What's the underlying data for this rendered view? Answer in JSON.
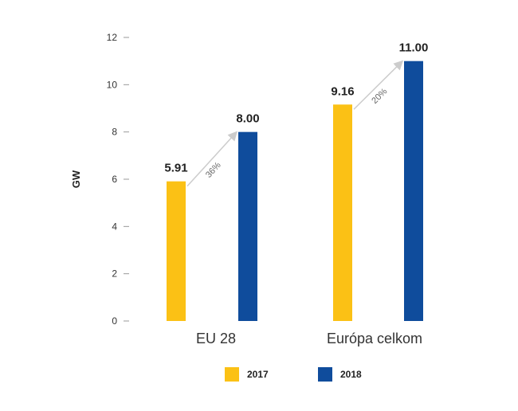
{
  "chart_data": {
    "type": "bar",
    "ylabel": "GW",
    "ylim": [
      0,
      12
    ],
    "yticks": [
      0,
      2,
      4,
      6,
      8,
      10,
      12
    ],
    "categories": [
      "EU 28",
      "Európa celkom"
    ],
    "series": [
      {
        "name": "2017",
        "color": "#FBC115",
        "values": [
          5.91,
          9.16
        ],
        "labels": [
          "5.91",
          "9.16"
        ]
      },
      {
        "name": "2018",
        "color": "#0F4C9C",
        "values": [
          8.0,
          11.0
        ],
        "labels": [
          "8.00",
          "11.00"
        ]
      }
    ],
    "growth_labels": [
      "36%",
      "20%"
    ],
    "grid": false,
    "legend": "bottom"
  }
}
